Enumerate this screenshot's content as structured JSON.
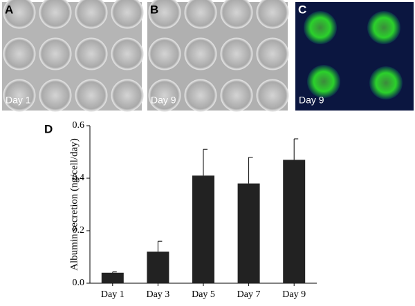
{
  "panels": [
    {
      "letter": "A",
      "caption": "Day 1"
    },
    {
      "letter": "B",
      "caption": "Day 9"
    },
    {
      "letter": "C",
      "caption": "Day 9"
    }
  ],
  "chart_data": {
    "type": "bar",
    "label": "D",
    "ylabel": "Albumin secretion (ng/cell/day)",
    "categories": [
      "Day 1",
      "Day 3",
      "Day 5",
      "Day 7",
      "Day 9"
    ],
    "values": [
      0.04,
      0.12,
      0.41,
      0.38,
      0.47
    ],
    "errors": [
      0.003,
      0.04,
      0.1,
      0.1,
      0.08
    ],
    "color": "#222222",
    "ylim": [
      0,
      0.6
    ],
    "yticks": [
      {
        "value": 0,
        "label": "0.0"
      },
      0.2,
      0.4,
      0.6
    ]
  }
}
